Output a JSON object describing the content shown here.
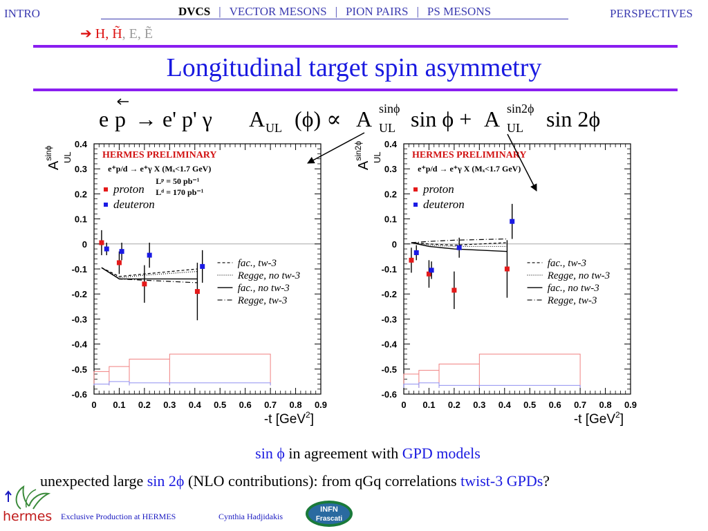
{
  "nav": {
    "left": "INTRO",
    "right": "PERSPECTIVES",
    "items": [
      "DVCS",
      "VECTOR MESONS",
      "PION PAIRS",
      "PS MESONS"
    ],
    "separator": "|",
    "active": "DVCS"
  },
  "sub_nav": {
    "arrow": "➔",
    "h": "H,",
    "htilde": "H̃",
    "e": ", E,",
    "etilde": "Ẽ"
  },
  "slide_title": "Longitudinal target spin asymmetry",
  "formula": {
    "reaction_left": "e",
    "reaction_p": "p",
    "reaction_right": "→ e' p' γ",
    "asym_lhs": "A",
    "asym_lhs_sub": "UL",
    "asym_lhs_arg": "(ϕ) ∝",
    "term1_sup": "sinϕ",
    "term1_sub": "UL",
    "term1_fn": "sin ϕ +",
    "term2_sup": "sin2ϕ",
    "term2_sub": "UL",
    "term2_fn": "sin 2ϕ",
    "A": "A"
  },
  "colors": {
    "proton": "#e41a1a",
    "deuteron": "#1a1ae4",
    "title_blue": "#1919e0",
    "rule_purple": "#8a1ef0",
    "prelim_red": "#d11111"
  },
  "chart_data": [
    {
      "type": "scatter",
      "ylabel": "A",
      "ylabel_sup": "sinϕ",
      "ylabel_sub": "UL",
      "xlabel": "-t [GeV",
      "xlabel_sup": "2",
      "xlabel_close": "]",
      "xlim": [
        0,
        0.9
      ],
      "ylim": [
        -0.6,
        0.4
      ],
      "x_ticks": [
        "0",
        "0.1",
        "0.2",
        "0.3",
        "0.4",
        "0.5",
        "0.6",
        "0.7",
        "0.8",
        "0.9"
      ],
      "y_ticks": [
        "0.4",
        "0.3",
        "0.2",
        "0.1",
        "0",
        "-0.1",
        "-0.2",
        "-0.3",
        "-0.4",
        "-0.5",
        "-0.6"
      ],
      "preliminary": "HERMES PRELIMINARY",
      "process": "e⁺p/d → e⁺γ X  (Mₓ<1.7 GeV)",
      "lumi": [
        "Lᵖ =   50 pb⁻¹",
        "Lᵈ = 170 pb⁻¹"
      ],
      "legend_markers": [
        "proton",
        "deuteron"
      ],
      "legend_lines": [
        "fac., tw-3",
        "Regge, no tw-3",
        "fac., no tw-3",
        "Regge, tw-3"
      ],
      "series": [
        {
          "name": "proton",
          "x": [
            0.03,
            0.1,
            0.2,
            0.41
          ],
          "y": [
            0.005,
            -0.075,
            -0.16,
            -0.19
          ],
          "err": [
            0.05,
            0.045,
            0.075,
            0.115
          ]
        },
        {
          "name": "deuteron",
          "x": [
            0.05,
            0.11,
            0.22,
            0.43
          ],
          "y": [
            -0.02,
            -0.03,
            -0.045,
            -0.09
          ],
          "err": [
            0.025,
            0.035,
            0.05,
            0.065
          ]
        }
      ],
      "curves": [
        {
          "name": "fac., tw-3",
          "x": [
            0.03,
            0.1,
            0.2,
            0.41
          ],
          "y": [
            -0.095,
            -0.13,
            -0.12,
            -0.1
          ]
        },
        {
          "name": "Regge, no tw-3",
          "x": [
            0.03,
            0.1,
            0.2,
            0.41
          ],
          "y": [
            -0.095,
            -0.135,
            -0.125,
            -0.11
          ]
        },
        {
          "name": "fac., no tw-3",
          "x": [
            0.03,
            0.1,
            0.2,
            0.41
          ],
          "y": [
            -0.095,
            -0.14,
            -0.14,
            -0.14
          ]
        },
        {
          "name": "Regge, tw-3",
          "x": [
            0.03,
            0.1,
            0.2,
            0.41
          ],
          "y": [
            -0.095,
            -0.14,
            -0.145,
            -0.155
          ]
        }
      ],
      "systematics": {
        "bins": [
          [
            0,
            0.06
          ],
          [
            0.06,
            0.14
          ],
          [
            0.14,
            0.3
          ],
          [
            0.3,
            0.7
          ]
        ],
        "proton": [
          -0.51,
          -0.49,
          -0.46,
          -0.44
        ],
        "deuteron": [
          -0.56,
          -0.55,
          -0.555,
          -0.555
        ],
        "baseline": -0.565
      }
    },
    {
      "type": "scatter",
      "ylabel": "A",
      "ylabel_sup": "sin2ϕ",
      "ylabel_sub": "UL",
      "xlabel": "-t [GeV",
      "xlabel_sup": "2",
      "xlabel_close": "]",
      "xlim": [
        0,
        0.9
      ],
      "ylim": [
        -0.6,
        0.4
      ],
      "x_ticks": [
        "0",
        "0.1",
        "0.2",
        "0.3",
        "0.4",
        "0.5",
        "0.6",
        "0.7",
        "0.8",
        "0.9"
      ],
      "y_ticks": [
        "0.4",
        "0.3",
        "0.2",
        "0.1",
        "0",
        "-0.1",
        "-0.2",
        "-0.3",
        "-0.4",
        "-0.5",
        "-0.6"
      ],
      "preliminary": "HERMES PRELIMINARY",
      "process": "e⁺p/d → e⁺γ X  (Mₓ<1.7 GeV)",
      "lumi": [],
      "legend_markers": [
        "proton",
        "deuteron"
      ],
      "legend_lines": [
        "fac., tw-3",
        "Regge, no tw-3",
        "fac., no tw-3",
        "Regge, tw-3"
      ],
      "series": [
        {
          "name": "proton",
          "x": [
            0.03,
            0.1,
            0.2,
            0.41
          ],
          "y": [
            -0.065,
            -0.12,
            -0.185,
            -0.1
          ],
          "err": [
            0.05,
            0.055,
            0.075,
            0.115
          ]
        },
        {
          "name": "deuteron",
          "x": [
            0.05,
            0.11,
            0.22,
            0.43
          ],
          "y": [
            -0.035,
            -0.105,
            -0.015,
            0.09
          ],
          "err": [
            0.03,
            0.035,
            0.04,
            0.07
          ]
        }
      ],
      "curves": [
        {
          "name": "fac., tw-3",
          "x": [
            0.03,
            0.1,
            0.2,
            0.41
          ],
          "y": [
            0.005,
            0.0,
            -0.005,
            0.005
          ]
        },
        {
          "name": "Regge, no tw-3",
          "x": [
            0.03,
            0.1,
            0.2,
            0.41
          ],
          "y": [
            0.005,
            -0.005,
            -0.01,
            -0.01
          ]
        },
        {
          "name": "fac., no tw-3",
          "x": [
            0.03,
            0.1,
            0.2,
            0.41
          ],
          "y": [
            0.005,
            -0.01,
            -0.02,
            -0.03
          ]
        },
        {
          "name": "Regge, tw-3",
          "x": [
            0.03,
            0.1,
            0.2,
            0.41
          ],
          "y": [
            0.005,
            0.01,
            0.015,
            0.02
          ]
        }
      ],
      "systematics": {
        "bins": [
          [
            0,
            0.06
          ],
          [
            0.06,
            0.14
          ],
          [
            0.14,
            0.3
          ],
          [
            0.3,
            0.7
          ]
        ],
        "proton": [
          -0.52,
          -0.505,
          -0.48,
          -0.44
        ],
        "deuteron": [
          -0.56,
          -0.555,
          -0.565,
          -0.565
        ],
        "baseline": -0.575
      }
    }
  ],
  "conclusions": {
    "line1_a": "sin ϕ",
    "line1_b": " in agreement  with ",
    "line1_c": "GPD models",
    "line2_a": "unexpected large ",
    "line2_b": "sin 2ϕ",
    "line2_c": " (NLO contributions): from qGq correlations ",
    "line2_d": "twist-3 GPDs",
    "line2_e": "?"
  },
  "footer": {
    "left": "Exclusive Production at HERMES",
    "author": "Cynthia Hadjidakis",
    "hermes_logo": "hermes",
    "infn_logo_top": "INFN",
    "infn_logo_bottom": "Frascati"
  }
}
